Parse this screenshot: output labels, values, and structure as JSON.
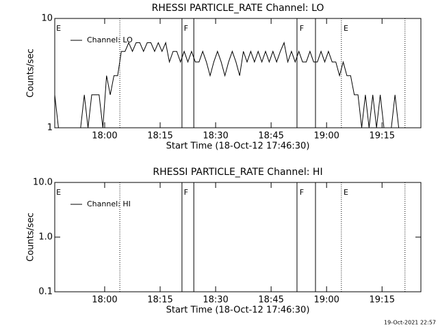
{
  "chart_data": [
    {
      "type": "line",
      "title": "RHESSI PARTICLE_RATE Channel: LO",
      "xlabel": "Start Time (18-Oct-12 17:46:30)",
      "ylabel": "Counts/sec",
      "x": [
        0,
        1,
        2,
        3,
        4,
        5,
        6,
        7,
        8,
        9,
        10,
        11,
        12,
        13,
        14,
        15,
        16,
        17,
        18,
        19,
        20,
        21,
        22,
        23,
        24,
        25,
        26,
        27,
        28,
        29,
        30,
        31,
        32,
        33,
        34,
        35,
        36,
        37,
        38,
        39,
        40,
        41,
        42,
        43,
        44,
        45,
        46,
        47,
        48,
        49,
        50,
        51,
        52,
        53,
        54,
        55,
        56,
        57,
        58,
        59,
        60,
        61,
        62,
        63,
        64,
        65,
        66,
        67,
        68,
        69,
        70,
        71,
        72,
        73,
        74,
        75,
        76,
        77,
        78,
        79,
        80,
        81,
        82,
        83,
        84,
        85,
        86,
        87,
        88,
        89,
        90,
        91,
        92,
        93,
        94,
        95,
        96,
        97,
        98
      ],
      "series": [
        {
          "name": "Channel: LO",
          "color": "#000000",
          "values": [
            2,
            1,
            1,
            1,
            1,
            1,
            1,
            1,
            2,
            1,
            2,
            2,
            2,
            1,
            3,
            2,
            3,
            3,
            5,
            5,
            6,
            5,
            6,
            6,
            5,
            6,
            6,
            5,
            6,
            5,
            6,
            4,
            5,
            5,
            4,
            5,
            4,
            5,
            4,
            4,
            5,
            4,
            3,
            4,
            5,
            4,
            3,
            4,
            5,
            4,
            3,
            5,
            4,
            5,
            4,
            5,
            4,
            5,
            4,
            5,
            4,
            5,
            6,
            4,
            5,
            4,
            5,
            4,
            4,
            5,
            4,
            4,
            5,
            4,
            5,
            4,
            4,
            3,
            4,
            3,
            3,
            2,
            2,
            1,
            2,
            1,
            2,
            1,
            2,
            1,
            1,
            1,
            2,
            1,
            1,
            1,
            1,
            1,
            1
          ]
        }
      ],
      "xlim": [
        0,
        99
      ],
      "ylim": [
        1,
        10
      ],
      "log_y": true,
      "xticks": [
        {
          "value": 13.5,
          "label": "18:00"
        },
        {
          "value": 28.5,
          "label": "18:15"
        },
        {
          "value": 43.5,
          "label": "18:30"
        },
        {
          "value": 58.5,
          "label": "18:45"
        },
        {
          "value": 73.5,
          "label": "19:00"
        },
        {
          "value": 88.5,
          "label": "19:15"
        }
      ],
      "yticks": [
        1,
        10
      ],
      "markers": [
        {
          "x": 17.6,
          "style": "dotted"
        },
        {
          "x": 34.4,
          "style": "solid"
        },
        {
          "x": 37.6,
          "style": "solid"
        },
        {
          "x": 65.5,
          "style": "solid"
        },
        {
          "x": 70.5,
          "style": "solid"
        },
        {
          "x": 77.5,
          "style": "dotted"
        },
        {
          "x": 94.7,
          "style": "dotted"
        }
      ],
      "flags": [
        {
          "x": 0.4,
          "text": "E"
        },
        {
          "x": 34.9,
          "text": "F"
        },
        {
          "x": 66.2,
          "text": "F"
        },
        {
          "x": 78.1,
          "text": "E"
        }
      ]
    },
    {
      "type": "line",
      "title": "RHESSI PARTICLE_RATE Channel: HI",
      "xlabel": "Start Time (18-Oct-12 17:46:30)",
      "ylabel": "Counts/sec",
      "x": [],
      "series": [
        {
          "name": "Channel: HI",
          "color": "#000000",
          "values": []
        }
      ],
      "xlim": [
        0,
        99
      ],
      "ylim": [
        0.1,
        10
      ],
      "log_y": true,
      "xticks": [
        {
          "value": 13.5,
          "label": "18:00"
        },
        {
          "value": 28.5,
          "label": "18:15"
        },
        {
          "value": 43.5,
          "label": "18:30"
        },
        {
          "value": 58.5,
          "label": "18:45"
        },
        {
          "value": 73.5,
          "label": "19:00"
        },
        {
          "value": 88.5,
          "label": "19:15"
        }
      ],
      "yticks": [
        {
          "value": 0.1,
          "label": "0.1"
        },
        {
          "value": 1,
          "label": "1.0"
        },
        {
          "value": 10,
          "label": "10.0"
        }
      ],
      "markers": [
        {
          "x": 17.6,
          "style": "dotted"
        },
        {
          "x": 34.4,
          "style": "solid"
        },
        {
          "x": 37.6,
          "style": "solid"
        },
        {
          "x": 65.5,
          "style": "solid"
        },
        {
          "x": 70.5,
          "style": "solid"
        },
        {
          "x": 77.5,
          "style": "dotted"
        },
        {
          "x": 94.7,
          "style": "dotted"
        }
      ],
      "flags": [
        {
          "x": 0.4,
          "text": "E"
        },
        {
          "x": 34.9,
          "text": "F"
        },
        {
          "x": 66.2,
          "text": "F"
        },
        {
          "x": 78.1,
          "text": "E"
        }
      ]
    }
  ],
  "footer": "19-Oct-2021 22:57"
}
